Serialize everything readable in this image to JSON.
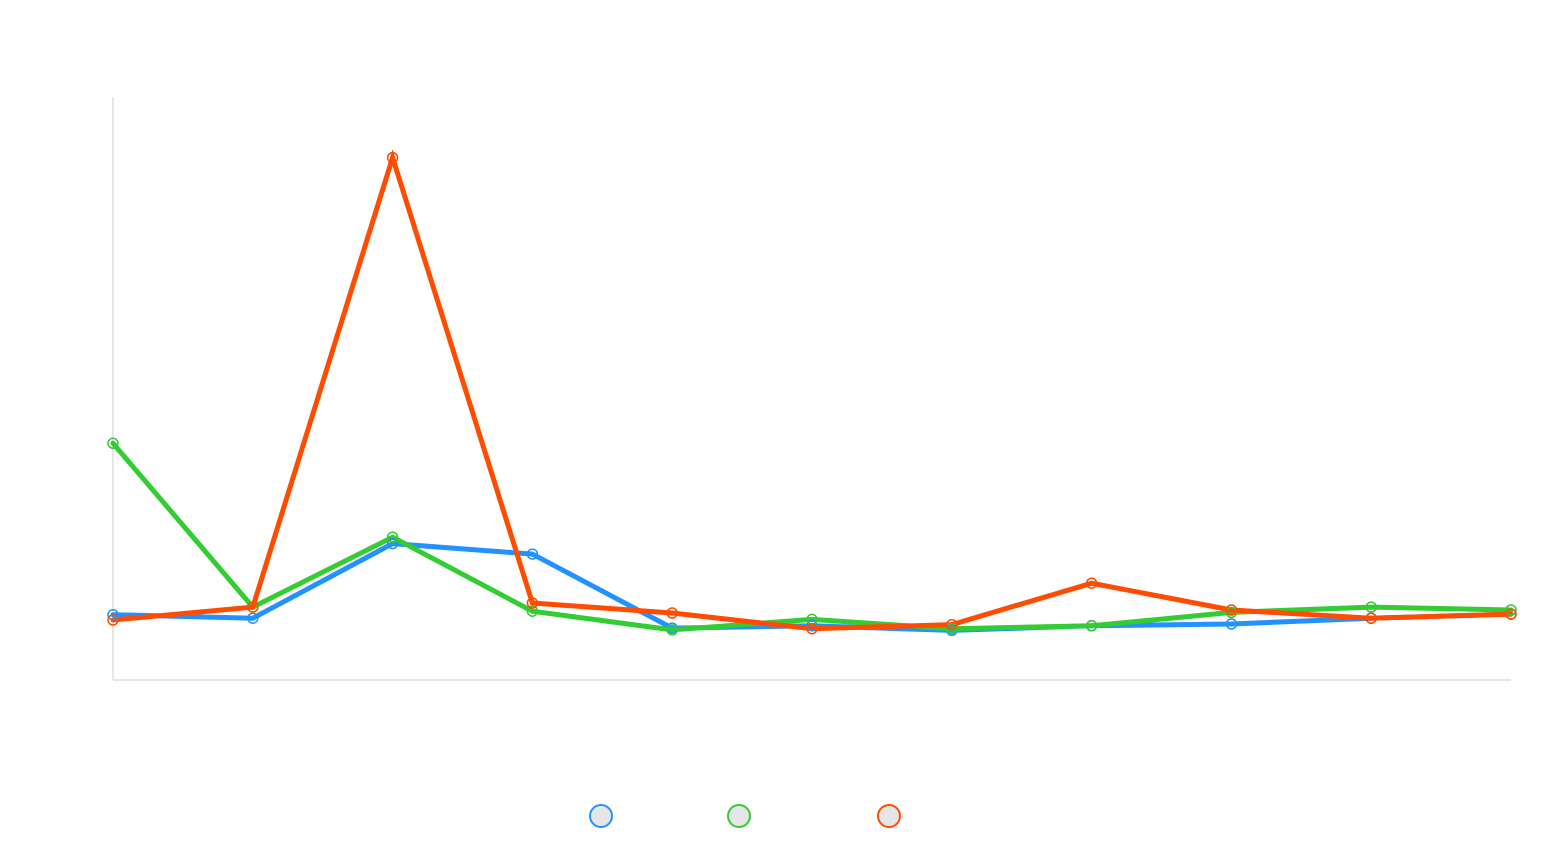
{
  "colors": {
    "background": "#ffffff",
    "axis": "#dddddd",
    "marker_fill": "#e6e6e6"
  },
  "chart_data": {
    "type": "line",
    "title": "",
    "xlabel": "",
    "ylabel": "",
    "x": [
      1,
      2,
      3,
      4,
      5,
      6,
      7,
      8,
      9,
      10,
      11
    ],
    "ylim": [
      0,
      100
    ],
    "grid": false,
    "legend_position": "bottom-center",
    "series": [
      {
        "color": "#2391ff",
        "values": [
          11.2,
          10.6,
          23.4,
          21.6,
          8.9,
          9.3,
          8.5,
          9.3,
          9.6,
          10.6,
          11.3
        ]
      },
      {
        "color": "#33cc33",
        "values": [
          40.6,
          12.5,
          24.5,
          11.8,
          8.6,
          10.4,
          8.8,
          9.3,
          11.6,
          12.5,
          12.0
        ]
      },
      {
        "color": "#ff4c00",
        "values": [
          10.3,
          12.5,
          89.6,
          13.2,
          11.5,
          8.8,
          9.5,
          16.6,
          12.0,
          10.6,
          11.3
        ]
      }
    ]
  }
}
